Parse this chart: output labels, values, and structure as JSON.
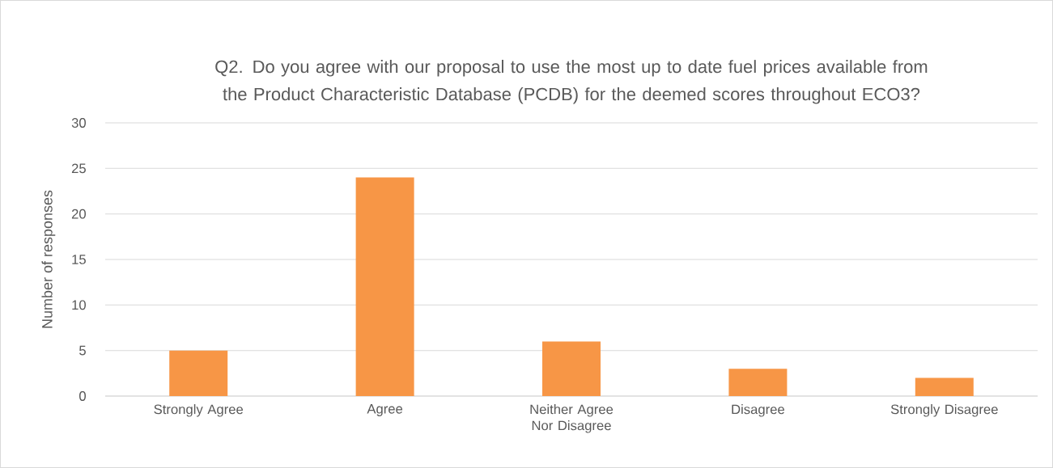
{
  "chart_data": {
    "type": "bar",
    "title": "Q2. Do you agree with our proposal to use the most up to date fuel prices available from the Product Characteristic Database (PCDB) for the deemed scores throughout ECO3?",
    "ylabel": "Number of responses",
    "categories": [
      "Strongly Agree",
      "Agree",
      "Neither Agree Nor Disagree",
      "Disagree",
      "Strongly Disagree"
    ],
    "values": [
      5,
      24,
      6,
      3,
      2
    ],
    "color": "#f79646",
    "ylim": [
      0,
      30
    ],
    "yticks": [
      0,
      5,
      10,
      15,
      20,
      25,
      30
    ],
    "grid": "y"
  }
}
